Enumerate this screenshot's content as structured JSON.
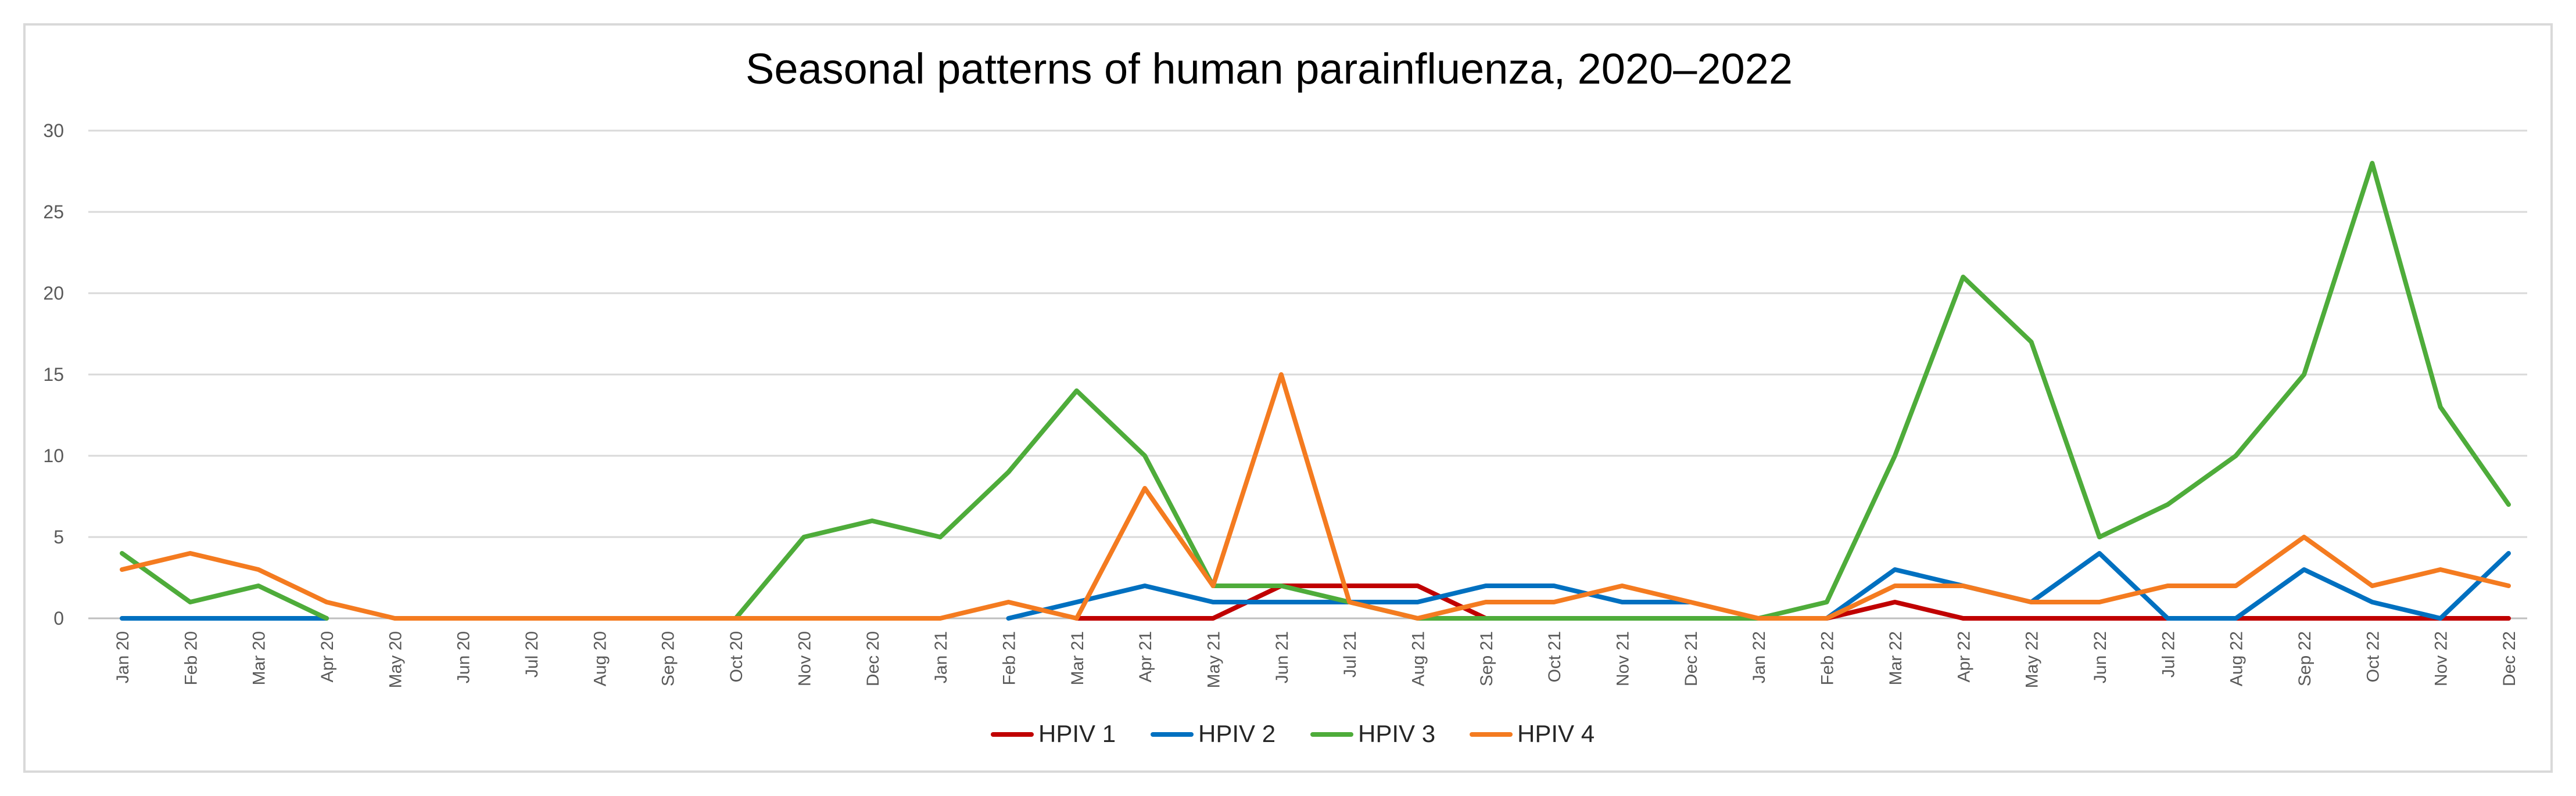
{
  "chart_data": {
    "type": "line",
    "title": "Seasonal patterns of human parainfluenza, 2020–2022",
    "xlabel": "",
    "ylabel": "",
    "ylim": [
      0,
      30
    ],
    "yticks": [
      0,
      5,
      10,
      15,
      20,
      25,
      30
    ],
    "grid": true,
    "legend_position": "bottom",
    "categories": [
      "Jan 20",
      "Feb 20",
      "Mar 20",
      "Apr 20",
      "May 20",
      "Jun 20",
      "Jul 20",
      "Aug 20",
      "Sep 20",
      "Oct 20",
      "Nov 20",
      "Dec 20",
      "Jan 21",
      "Feb 21",
      "Mar 21",
      "Apr 21",
      "May 21",
      "Jun 21",
      "Jul 21",
      "Aug 21",
      "Sep 21",
      "Oct 21",
      "Nov 21",
      "Dec 21",
      "Jan 22",
      "Feb 22",
      "Mar 22",
      "Apr 22",
      "May 22",
      "Jun 22",
      "Jul 22",
      "Aug 22",
      "Sep 22",
      "Oct 22",
      "Nov 22",
      "Dec 22"
    ],
    "series": [
      {
        "name": "HPIV 1",
        "color": "#c00000",
        "values": [
          null,
          null,
          null,
          null,
          null,
          null,
          null,
          null,
          null,
          null,
          null,
          null,
          null,
          null,
          0,
          0,
          0,
          2,
          2,
          2,
          0,
          null,
          null,
          null,
          null,
          0,
          1,
          0,
          0,
          0,
          0,
          0,
          0,
          0,
          0,
          0
        ]
      },
      {
        "name": "HPIV 2",
        "color": "#0070c0",
        "values": [
          0,
          0,
          0,
          0,
          null,
          null,
          null,
          null,
          null,
          null,
          null,
          null,
          null,
          0,
          1,
          2,
          1,
          1,
          1,
          1,
          2,
          2,
          1,
          1,
          null,
          0,
          3,
          2,
          1,
          4,
          0,
          0,
          3,
          1,
          0,
          4
        ]
      },
      {
        "name": "HPIV 3",
        "color": "#4eac3a",
        "values": [
          4,
          1,
          2,
          0,
          null,
          null,
          null,
          null,
          null,
          0,
          5,
          6,
          5,
          9,
          14,
          10,
          2,
          2,
          1,
          0,
          0,
          0,
          0,
          0,
          0,
          1,
          10,
          21,
          17,
          5,
          7,
          10,
          15,
          28,
          13,
          7
        ]
      },
      {
        "name": "HPIV 4",
        "color": "#f47b20",
        "values": [
          3,
          4,
          3,
          1,
          0,
          0,
          0,
          0,
          0,
          0,
          0,
          0,
          0,
          1,
          0,
          8,
          2,
          15,
          1,
          0,
          1,
          1,
          2,
          1,
          0,
          0,
          2,
          2,
          1,
          1,
          2,
          2,
          5,
          2,
          3,
          2
        ]
      }
    ]
  }
}
